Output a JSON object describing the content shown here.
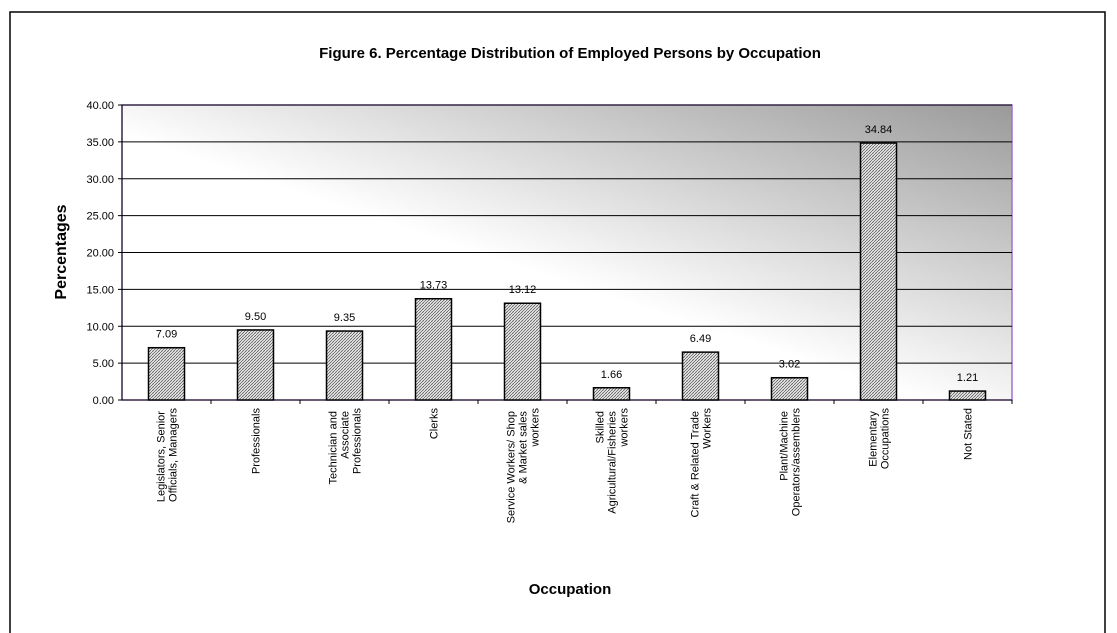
{
  "chart_data": {
    "type": "bar",
    "title": "Figure 6. Percentage Distribution of Employed Persons by Occupation",
    "x_label": "Occupation",
    "y_label": "Percentages",
    "categories": [
      "Legislators, Senior Officials, Managers",
      "Professionals",
      "Technician and Associate Professionals",
      "Clerks",
      "Service Workers/ Shop & Market sales workers",
      "Skilled Agricultural/Fisheries workers",
      "Craft & Related Trade Workers",
      "Plant/Machine Operators/assemblers",
      "Elementary Occupations",
      "Not Stated"
    ],
    "values": [
      7.09,
      9.5,
      9.35,
      13.73,
      13.12,
      1.66,
      6.49,
      3.02,
      34.84,
      1.21
    ],
    "value_labels": [
      "7.09",
      "9.50",
      "9.35",
      "13.73",
      "13.12",
      "1.66",
      "6.49",
      "3.02",
      "34.84",
      "1.21"
    ],
    "color": "#cccccc",
    "ylim": [
      0,
      40
    ],
    "yticks": [
      {
        "value": 0,
        "label": "0.00"
      },
      {
        "value": 5,
        "label": "5.00"
      },
      {
        "value": 10,
        "label": "10.00"
      },
      {
        "value": 15,
        "label": "15.00"
      },
      {
        "value": 20,
        "label": "20.00"
      },
      {
        "value": 25,
        "label": "25.00"
      },
      {
        "value": 30,
        "label": "30.00"
      },
      {
        "value": 35,
        "label": "35.00"
      },
      {
        "value": 40,
        "label": "40.00"
      }
    ],
    "grid": true
  }
}
